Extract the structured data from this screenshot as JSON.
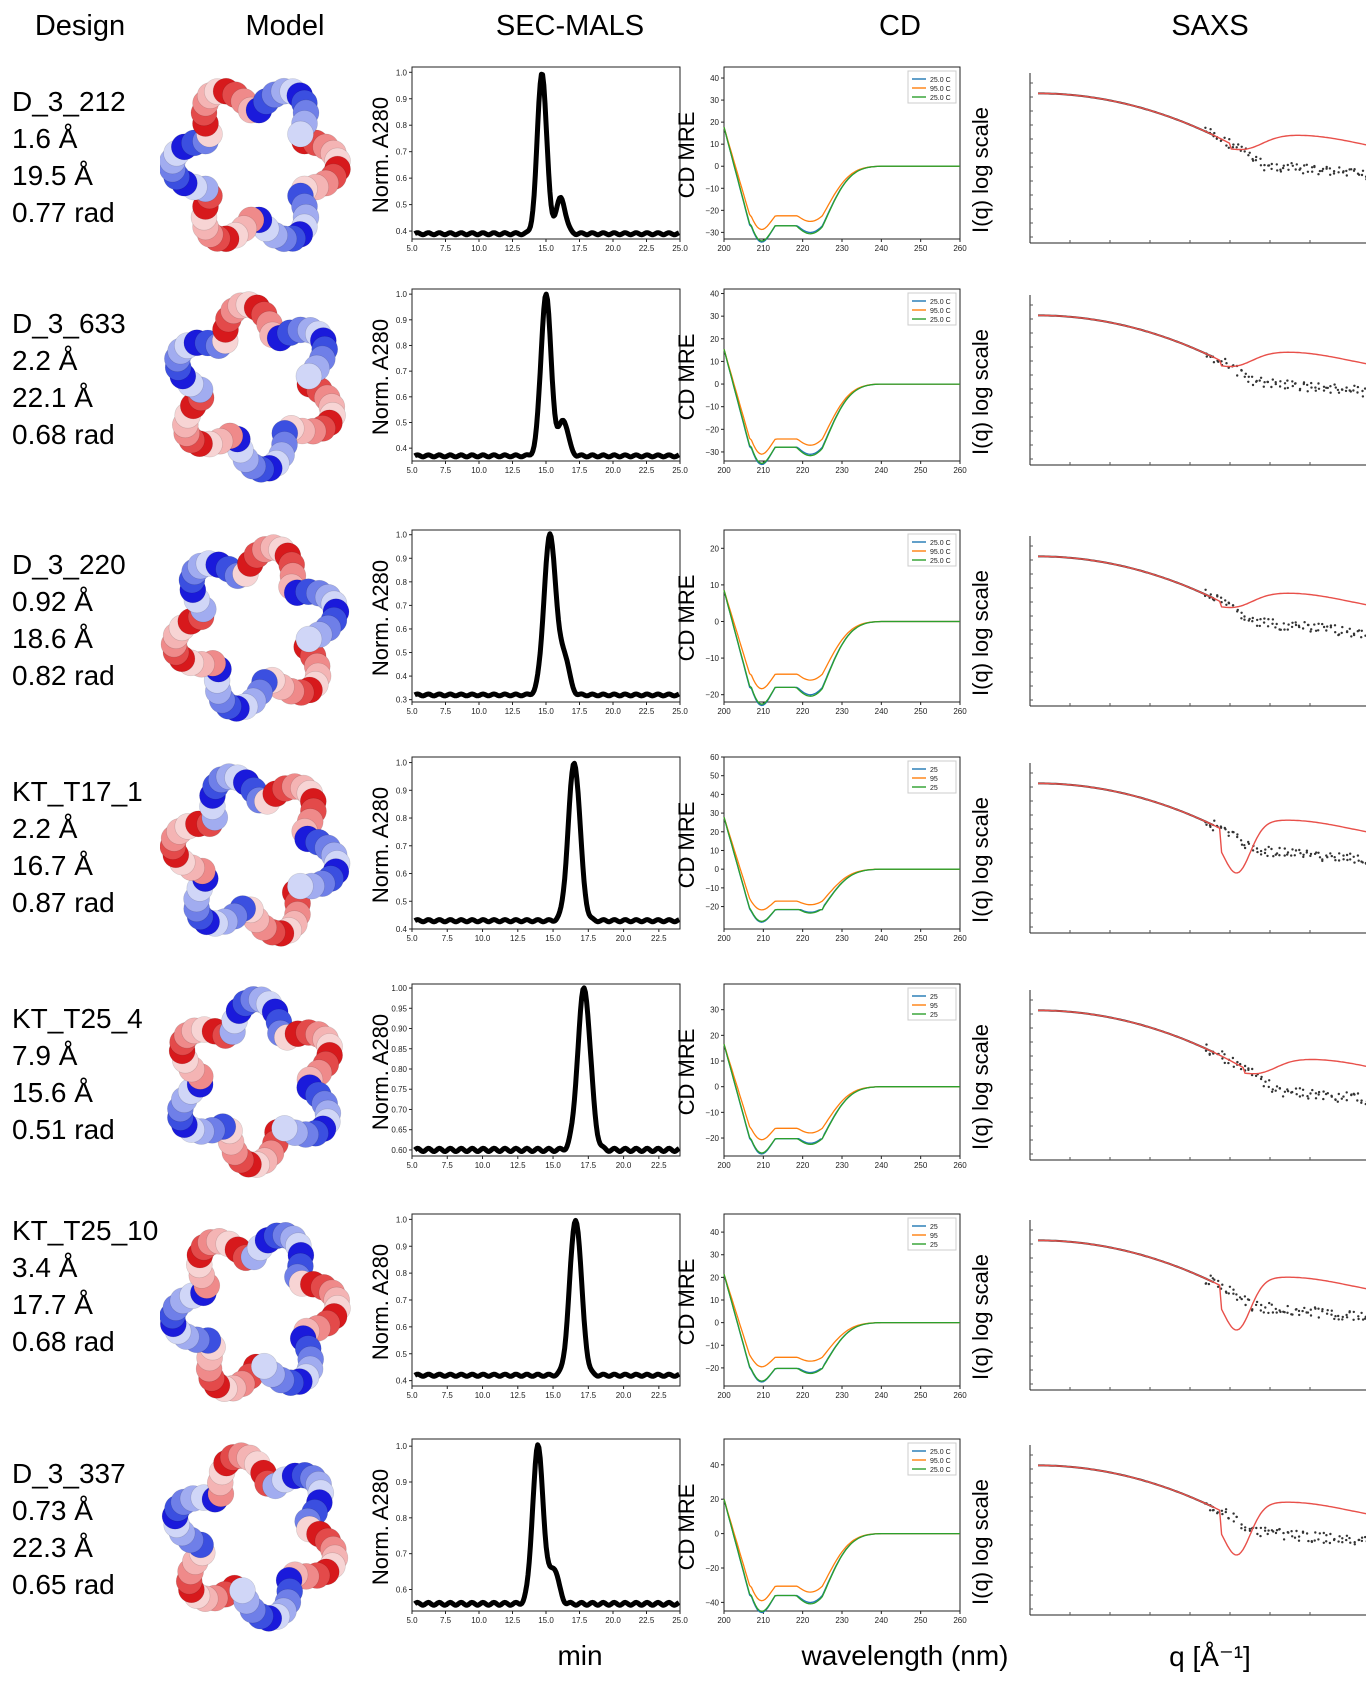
{
  "headers": {
    "design": "Design",
    "model": "Model",
    "secmals": "SEC-MALS",
    "cd": "CD",
    "saxs": "SAXS"
  },
  "footers": {
    "secmals": "min",
    "cd": "wavelength (nm)",
    "saxs": "q [Å⁻¹]"
  },
  "ylabels": {
    "secmals": "Norm. A280",
    "cd": "CD MRE",
    "saxs": "I(q) log scale"
  },
  "colors": {
    "cd_25": "#1f77b4",
    "cd_95": "#ff7f0e",
    "cd_25b": "#2ca02c",
    "saxs_fit": "#e8504a",
    "saxs_pts": "#333333",
    "sec": "#000000"
  },
  "rows": [
    {
      "name": "D_3_212",
      "rmsd": "1.6 Å",
      "radius": "19.5 Å",
      "angle": "0.77 rad",
      "chart_data": {
        "sec": {
          "type": "line",
          "xlim": [
            5,
            25
          ],
          "xticks": [
            "5.0",
            "7.5",
            "10.0",
            "12.5",
            "15.0",
            "17.5",
            "20.0",
            "22.5",
            "25.0"
          ],
          "ylim": [
            0.37,
            1.02
          ],
          "yticks": [
            "0.4",
            "0.5",
            "0.6",
            "0.7",
            "0.8",
            "0.9",
            "1.0"
          ],
          "baseline": 0.39,
          "peak": 14.7,
          "width": 0.35,
          "shoulder": 16.1
        },
        "cd": {
          "type": "line",
          "xlim": [
            200,
            260
          ],
          "xticks": [
            "200",
            "210",
            "220",
            "230",
            "240",
            "250",
            "260"
          ],
          "ylim": [
            -33,
            45
          ],
          "yticks": [
            "40",
            "30",
            "20",
            "10",
            "0",
            "−10",
            "−20",
            "−30"
          ],
          "legend": [
            "25.0 C",
            "95.0 C",
            "25.0 C"
          ],
          "min1": -30,
          "min2": -30,
          "min95": -25
        },
        "saxs": {
          "type": "scatter",
          "dip": false,
          "minq": 0.58
        }
      }
    },
    {
      "name": "D_3_633",
      "rmsd": "2.2 Å",
      "radius": "22.1 Å",
      "angle": "0.68 rad",
      "chart_data": {
        "sec": {
          "type": "line",
          "xlim": [
            5,
            25
          ],
          "xticks": [
            "5.0",
            "7.5",
            "10.0",
            "12.5",
            "15.0",
            "17.5",
            "20.0",
            "22.5",
            "25.0"
          ],
          "ylim": [
            0.35,
            1.02
          ],
          "yticks": [
            "0.4",
            "0.5",
            "0.6",
            "0.7",
            "0.8",
            "0.9",
            "1.0"
          ],
          "baseline": 0.37,
          "peak": 15.0,
          "width": 0.38,
          "shoulder": 16.3
        },
        "cd": {
          "type": "line",
          "xlim": [
            200,
            260
          ],
          "xticks": [
            "200",
            "210",
            "220",
            "230",
            "240",
            "250",
            "260"
          ],
          "ylim": [
            -34,
            42
          ],
          "yticks": [
            "40",
            "30",
            "20",
            "10",
            "0",
            "−10",
            "−20",
            "−30"
          ],
          "legend": [
            "25.0 C",
            "95.0 C",
            "25.0 C"
          ],
          "min1": -31,
          "min2": -31,
          "min95": -27
        },
        "saxs": {
          "type": "scatter",
          "dip": false,
          "minq": 0.55
        }
      }
    },
    {
      "name": "D_3_220",
      "rmsd": "0.92 Å",
      "radius": "18.6 Å",
      "angle": "0.82 rad",
      "chart_data": {
        "sec": {
          "type": "line",
          "xlim": [
            5,
            25
          ],
          "xticks": [
            "5.0",
            "7.5",
            "10.0",
            "12.5",
            "15.0",
            "17.5",
            "20.0",
            "22.5",
            "25.0"
          ],
          "ylim": [
            0.29,
            1.02
          ],
          "yticks": [
            "0.3",
            "0.4",
            "0.5",
            "0.6",
            "0.7",
            "0.8",
            "0.9",
            "1.0"
          ],
          "baseline": 0.32,
          "peak": 15.3,
          "width": 0.45,
          "shoulder": 16.4
        },
        "cd": {
          "type": "line",
          "xlim": [
            200,
            260
          ],
          "xticks": [
            "200",
            "210",
            "220",
            "230",
            "240",
            "250",
            "260"
          ],
          "ylim": [
            -22,
            25
          ],
          "yticks": [
            "20",
            "10",
            "0",
            "−10",
            "−20"
          ],
          "legend": [
            "25.0 C",
            "95.0 C",
            "25.0 C"
          ],
          "min1": -20,
          "min2": -20,
          "min95": -16
        },
        "saxs": {
          "type": "scatter",
          "dip": false,
          "minq": 0.55
        }
      }
    },
    {
      "name": "KT_T17_1",
      "rmsd": "2.2 Å",
      "radius": "16.7 Å",
      "angle": "0.87 rad",
      "chart_data": {
        "sec": {
          "type": "line",
          "xlim": [
            5,
            24
          ],
          "xticks": [
            "5.0",
            "7.5",
            "10.0",
            "12.5",
            "15.0",
            "17.5",
            "20.0",
            "22.5"
          ],
          "ylim": [
            0.4,
            1.02
          ],
          "yticks": [
            "0.4",
            "0.5",
            "0.6",
            "0.7",
            "0.8",
            "0.9",
            "1.0"
          ],
          "baseline": 0.43,
          "peak": 16.5,
          "width": 0.42,
          "shoulder": 0
        },
        "cd": {
          "type": "line",
          "xlim": [
            200,
            260
          ],
          "xticks": [
            "200",
            "210",
            "220",
            "230",
            "240",
            "250",
            "260"
          ],
          "ylim": [
            -32,
            60
          ],
          "yticks": [
            "60",
            "50",
            "40",
            "30",
            "20",
            "10",
            "0",
            "−10",
            "−20"
          ],
          "legend": [
            "25",
            "95",
            "25"
          ],
          "min1": -25,
          "min2": -23,
          "min95": -19
        },
        "saxs": {
          "type": "scatter",
          "dip": true,
          "minq": 0.55
        }
      }
    },
    {
      "name": "KT_T25_4",
      "rmsd": "7.9 Å",
      "radius": "15.6 Å",
      "angle": "0.51 rad",
      "chart_data": {
        "sec": {
          "type": "line",
          "xlim": [
            5,
            24
          ],
          "xticks": [
            "5.0",
            "7.5",
            "10.0",
            "12.5",
            "15.0",
            "17.5",
            "20.0",
            "22.5"
          ],
          "ylim": [
            0.585,
            1.01
          ],
          "yticks": [
            "0.60",
            "0.65",
            "0.70",
            "0.75",
            "0.80",
            "0.85",
            "0.90",
            "0.95",
            "1.00"
          ],
          "baseline": 0.6,
          "peak": 17.2,
          "width": 0.45,
          "shoulder": 0
        },
        "cd": {
          "type": "line",
          "xlim": [
            200,
            260
          ],
          "xticks": [
            "200",
            "210",
            "220",
            "230",
            "240",
            "250",
            "260"
          ],
          "ylim": [
            -27,
            40
          ],
          "yticks": [
            "30",
            "20",
            "10",
            "0",
            "−10",
            "−20"
          ],
          "legend": [
            "25",
            "95",
            "25"
          ],
          "min1": -23,
          "min2": -22,
          "min95": -18
        },
        "saxs": {
          "type": "scatter",
          "dip": false,
          "minq": 0.62
        }
      }
    },
    {
      "name": "KT_T25_10",
      "rmsd": "3.4 Å",
      "radius": "17.7 Å",
      "angle": "0.68 rad",
      "chart_data": {
        "sec": {
          "type": "line",
          "xlim": [
            5,
            24
          ],
          "xticks": [
            "5.0",
            "7.5",
            "10.0",
            "12.5",
            "15.0",
            "17.5",
            "20.0",
            "22.5"
          ],
          "ylim": [
            0.38,
            1.02
          ],
          "yticks": [
            "0.4",
            "0.5",
            "0.6",
            "0.7",
            "0.8",
            "0.9",
            "1.0"
          ],
          "baseline": 0.42,
          "peak": 16.6,
          "width": 0.42,
          "shoulder": 0
        },
        "cd": {
          "type": "line",
          "xlim": [
            200,
            260
          ],
          "xticks": [
            "200",
            "210",
            "220",
            "230",
            "240",
            "250",
            "260"
          ],
          "ylim": [
            -28,
            48
          ],
          "yticks": [
            "40",
            "30",
            "20",
            "10",
            "0",
            "−10",
            "−20"
          ],
          "legend": [
            "25",
            "95",
            "25"
          ],
          "min1": -23,
          "min2": -22,
          "min95": -17
        },
        "saxs": {
          "type": "scatter",
          "dip": true,
          "minq": 0.55
        }
      }
    },
    {
      "name": "D_3_337",
      "rmsd": "0.73 Å",
      "radius": "22.3 Å",
      "angle": "0.65 rad",
      "chart_data": {
        "sec": {
          "type": "line",
          "xlim": [
            5,
            25
          ],
          "xticks": [
            "5.0",
            "7.5",
            "10.0",
            "12.5",
            "15.0",
            "17.5",
            "20.0",
            "22.5",
            "25.0"
          ],
          "ylim": [
            0.54,
            1.02
          ],
          "yticks": [
            "0.6",
            "0.7",
            "0.8",
            "0.9",
            "1.0"
          ],
          "baseline": 0.56,
          "peak": 14.4,
          "width": 0.4,
          "shoulder": 15.6
        },
        "cd": {
          "type": "line",
          "xlim": [
            200,
            260
          ],
          "xticks": [
            "200",
            "210",
            "220",
            "230",
            "240",
            "250",
            "260"
          ],
          "ylim": [
            -45,
            55
          ],
          "yticks": [
            "40",
            "20",
            "0",
            "−20",
            "−40"
          ],
          "legend": [
            "25.0 C",
            "95.0 C",
            "25.0 C"
          ],
          "min1": -40,
          "min2": -40,
          "min95": -34
        },
        "saxs": {
          "type": "scatter",
          "dip": true,
          "minq": 0.55
        }
      }
    }
  ]
}
